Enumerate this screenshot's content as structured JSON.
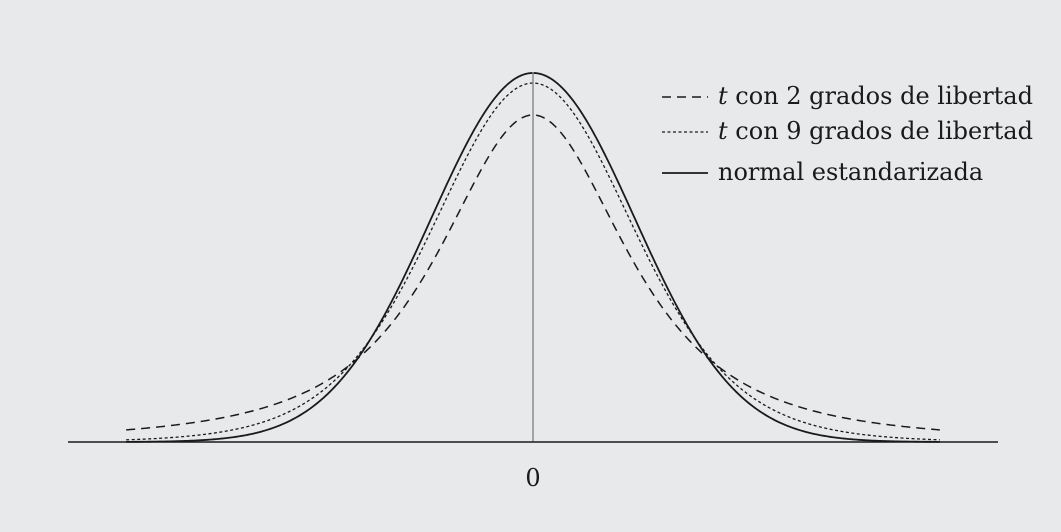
{
  "chart_data": {
    "type": "line",
    "title": "",
    "xlabel": "",
    "ylabel": "",
    "xlim": [
      -4,
      4
    ],
    "ylim": [
      0,
      0.4
    ],
    "x_ticks": [
      {
        "value": 0,
        "label": "0"
      }
    ],
    "grid": false,
    "legend_position": "top-right",
    "series": [
      {
        "name": "con 2 grados de libertad",
        "name_prefix": "t",
        "df": 2,
        "line_style": "dashed"
      },
      {
        "name": "con 9 grados de libertad",
        "name_prefix": "t",
        "df": 9,
        "line_style": "dotted"
      },
      {
        "name": "normal estandarizada",
        "line_style": "solid"
      }
    ]
  },
  "colors": {
    "background": "#e8e9ea",
    "curves": "#1a1a1a",
    "center_line": "#8c8c8c"
  }
}
